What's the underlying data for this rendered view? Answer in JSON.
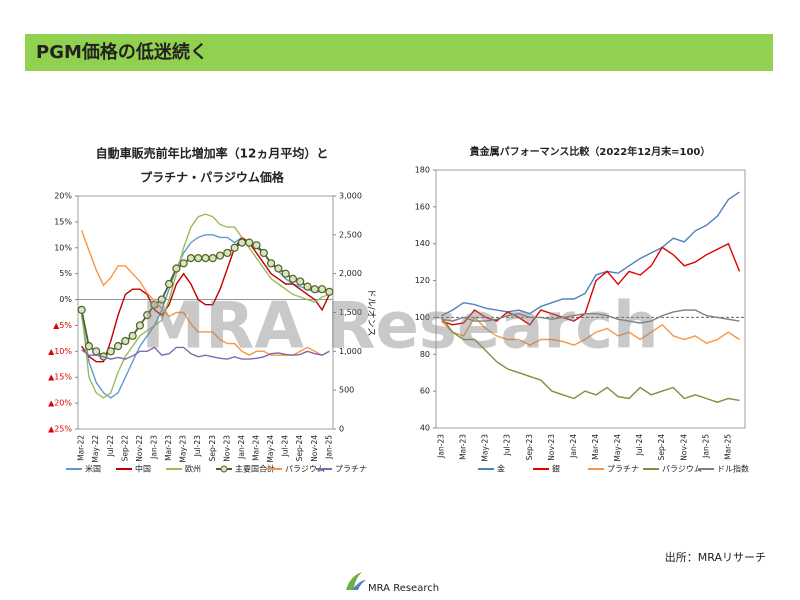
{
  "header": {
    "title": "PGM価格の低迷続く"
  },
  "source": "出所：MRAリサーチ",
  "logo": "MRA Research",
  "watermark": "MRA Research",
  "chart_data": [
    {
      "type": "line",
      "title_lines": [
        "自動車販売前年比増加率（12ヵ月平均）と",
        "プラチナ・パラジウム価格"
      ],
      "y2_label": "ドル/オンス",
      "categories": [
        "Mar-22",
        null,
        "May-22",
        null,
        "Jul-22",
        null,
        "Sep-22",
        null,
        "Nov-22",
        null,
        "Jan-23",
        null,
        "Mar-23",
        null,
        "May-23",
        null,
        "Jul-23",
        null,
        "Sep-23",
        null,
        "Nov-23",
        null,
        "Jan-24",
        null,
        "Mar-24",
        null,
        "May-24",
        null,
        "Jul-24",
        null,
        "Sep-24",
        null,
        "Nov-24",
        null,
        "Jan-25"
      ],
      "ylim": [
        -25,
        20
      ],
      "yticks": [
        {
          "value": -25,
          "label": "▲25%"
        },
        {
          "value": -20,
          "label": "▲20%"
        },
        {
          "value": -15,
          "label": "▲15%"
        },
        {
          "value": -10,
          "label": "▲10%"
        },
        {
          "value": -5,
          "label": "▲5%"
        },
        {
          "value": 0,
          "label": "0%"
        },
        {
          "value": 5,
          "label": "5%"
        },
        {
          "value": 10,
          "label": "10%"
        },
        {
          "value": 15,
          "label": "15%"
        },
        {
          "value": 20,
          "label": "20%"
        }
      ],
      "negative_tick_color": "#e00000",
      "y2lim": [
        0,
        3000
      ],
      "y2ticks": [
        0,
        500,
        {
          "value": 1000,
          "label": "1,000"
        },
        {
          "value": 1500,
          "label": "1,500"
        },
        {
          "value": 2000,
          "label": "2,000"
        },
        {
          "value": 2500,
          "label": "2,500"
        },
        {
          "value": 3000,
          "label": "3,000"
        }
      ],
      "series": [
        {
          "name": "米国",
          "color": "#5b9bd5",
          "values": [
            -3,
            -12,
            -16,
            -18,
            -19,
            -18,
            -15,
            -12,
            -9,
            -7,
            -5,
            -2,
            2,
            6,
            9,
            11,
            12,
            12.5,
            12.5,
            12,
            12,
            11,
            12,
            11,
            10,
            9,
            7,
            5.5,
            4,
            3,
            2.5,
            2,
            1.5,
            1.5,
            1.5
          ]
        },
        {
          "name": "中国",
          "color": "#c00000",
          "values": [
            -9,
            -11,
            -12,
            -12,
            -8,
            -3,
            1,
            2,
            2,
            1,
            -2,
            -3,
            -1,
            3,
            5,
            3,
            0,
            -1,
            -1,
            2,
            6,
            10,
            12,
            11,
            9,
            7,
            5,
            4,
            3,
            3,
            2,
            1,
            0,
            -2,
            1
          ]
        },
        {
          "name": "欧州",
          "color": "#9bbb59",
          "values": [
            -2,
            -15,
            -18,
            -19,
            -18,
            -14,
            -11,
            -9,
            -7,
            -6,
            -5,
            -4,
            0,
            5,
            10,
            14,
            16,
            16.5,
            16,
            14.5,
            14,
            14,
            12,
            10,
            8,
            6,
            4,
            3,
            2,
            1,
            0.5,
            0,
            -0.5,
            0.5,
            1
          ]
        },
        {
          "name": "主要国合計",
          "color": "#4f6228",
          "marker": true,
          "values": [
            -2,
            -9,
            -10,
            -11,
            -10,
            -9,
            -8,
            -7,
            -5,
            -3,
            -1,
            0,
            3,
            6,
            7,
            8,
            8,
            8,
            8,
            8.5,
            9,
            10,
            11,
            11,
            10.5,
            9,
            7,
            6,
            5,
            4,
            3.5,
            2.5,
            2,
            2,
            1.5
          ]
        },
        {
          "name": "パラジウム",
          "color": "#f79646",
          "axis": "y2",
          "values": [
            2560,
            2300,
            2050,
            1850,
            1950,
            2100,
            2100,
            2000,
            1900,
            1750,
            1650,
            1550,
            1450,
            1500,
            1500,
            1350,
            1250,
            1250,
            1250,
            1150,
            1100,
            1100,
            1000,
            950,
            1000,
            1000,
            950,
            950,
            950,
            950,
            1000,
            1050,
            1000,
            950,
            1000
          ]
        },
        {
          "name": "プラチナ",
          "color": "#7f6ab0",
          "axis": "y2",
          "values": [
            1020,
            950,
            950,
            930,
            900,
            920,
            900,
            940,
            1000,
            1000,
            1050,
            950,
            970,
            1050,
            1050,
            970,
            930,
            950,
            930,
            910,
            900,
            930,
            900,
            900,
            910,
            930,
            970,
            980,
            960,
            950,
            960,
            1000,
            970,
            950,
            1000
          ]
        }
      ]
    },
    {
      "type": "line",
      "title_lines": [
        "貴金属パフォーマンス比較（2022年12月末=100）"
      ],
      "categories": [
        "Jan-23",
        null,
        "Mar-23",
        null,
        "May-23",
        null,
        "Jul-23",
        null,
        "Sep-23",
        null,
        "Nov-23",
        null,
        "Jan-24",
        null,
        "Mar-24",
        null,
        "May-24",
        null,
        "Jul-24",
        null,
        "Sep-24",
        null,
        "Nov-24",
        null,
        "Jan-25",
        null,
        "Mar-25",
        null
      ],
      "ylim": [
        40,
        180
      ],
      "yticks": [
        40,
        60,
        80,
        100,
        120,
        140,
        160,
        180
      ],
      "reference_line": 100,
      "series": [
        {
          "name": "金",
          "color": "#4f81bd",
          "values": [
            101,
            104,
            108,
            107,
            105,
            104,
            103,
            104,
            102,
            106,
            108,
            110,
            110,
            113,
            123,
            125,
            124,
            128,
            132,
            135,
            138,
            143,
            141,
            147,
            150,
            155,
            164,
            168
          ]
        },
        {
          "name": "銀",
          "color": "#e00000",
          "values": [
            98,
            96,
            97,
            104,
            100,
            98,
            103,
            100,
            96,
            104,
            102,
            100,
            98,
            102,
            120,
            125,
            118,
            125,
            123,
            128,
            138,
            134,
            128,
            130,
            134,
            137,
            140,
            125
          ]
        },
        {
          "name": "プラチナ",
          "color": "#f79646",
          "values": [
            98,
            92,
            90,
            100,
            94,
            90,
            88,
            88,
            85,
            88,
            88,
            87,
            85,
            88,
            92,
            94,
            90,
            92,
            88,
            92,
            96,
            90,
            88,
            90,
            86,
            88,
            92,
            88
          ]
        },
        {
          "name": "パラジウム",
          "color": "#77933c",
          "values": [
            100,
            92,
            88,
            88,
            82,
            76,
            72,
            70,
            68,
            66,
            60,
            58,
            56,
            60,
            58,
            62,
            57,
            56,
            62,
            58,
            60,
            62,
            56,
            58,
            56,
            54,
            56,
            55
          ]
        },
        {
          "name": "ドル指数",
          "color": "#808080",
          "values": [
            99,
            98,
            100,
            98,
            98,
            99,
            101,
            102,
            100,
            100,
            99,
            100,
            101,
            102,
            102,
            101,
            99,
            98,
            97,
            98,
            101,
            103,
            104,
            104,
            101,
            100,
            99,
            98
          ]
        }
      ]
    }
  ]
}
